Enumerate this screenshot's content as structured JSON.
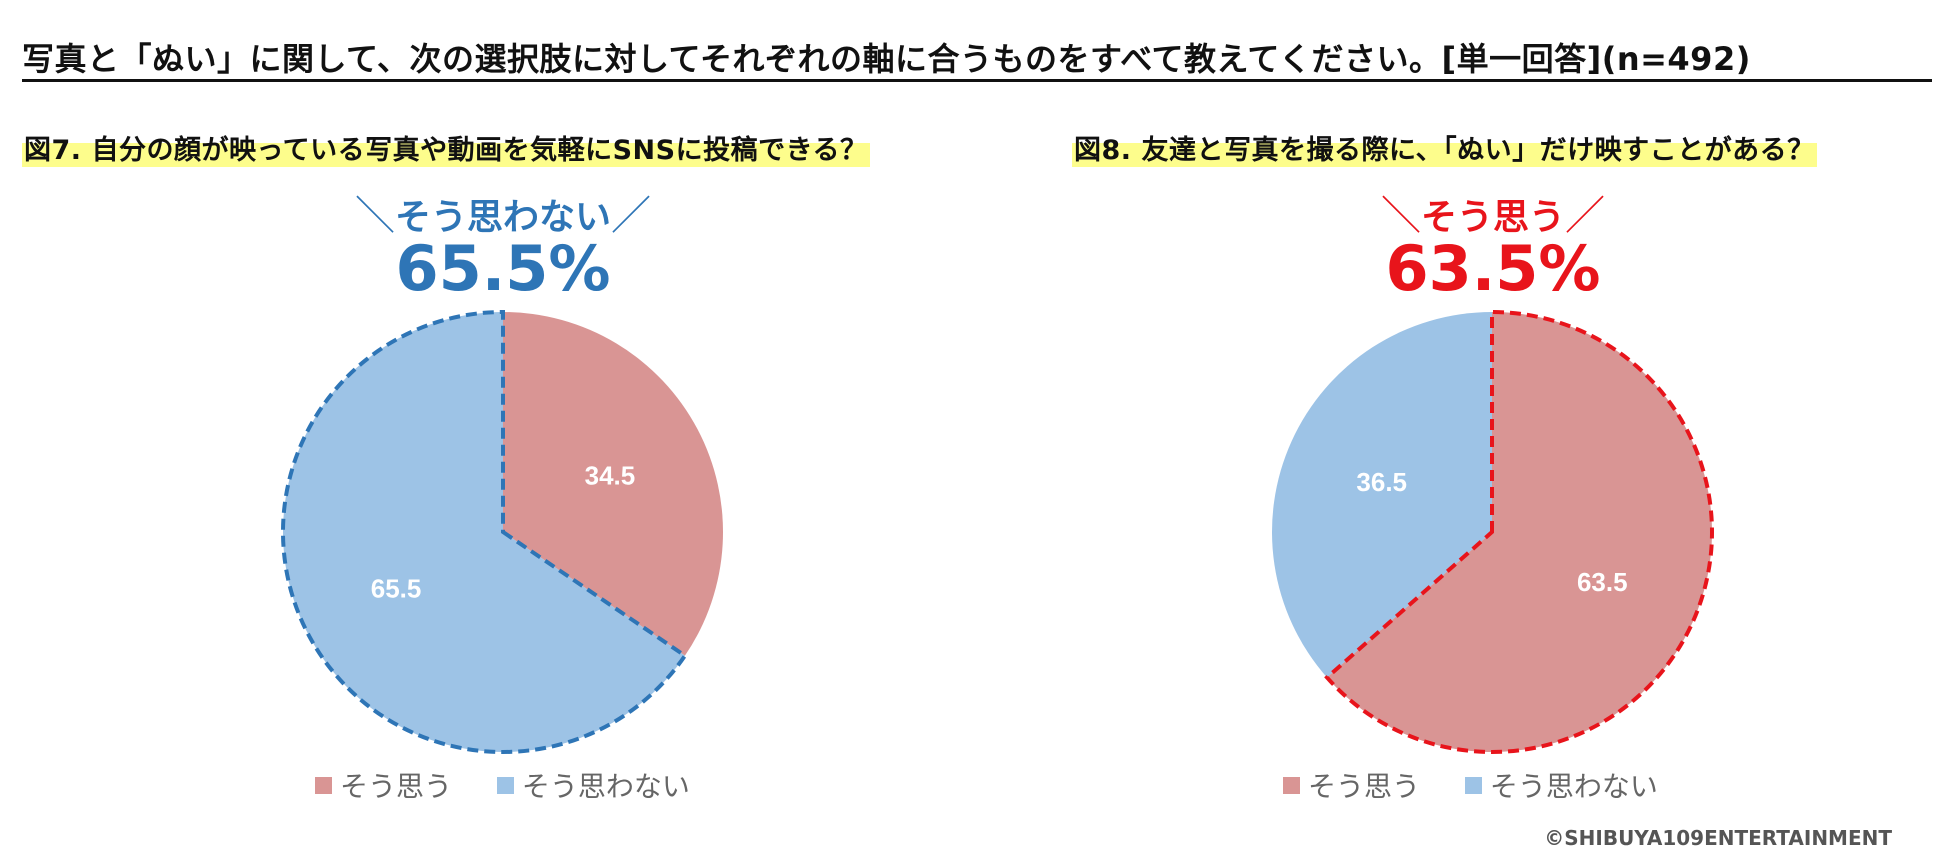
{
  "title": "写真と「ぬい」に関して、次の選択肢に対してそれぞれの軸に合うものをすべて教えてください。[単一回答](n=492)",
  "colors": {
    "agree": "#d99594",
    "disagree": "#9dc3e6",
    "blue_accent": "#2e75b6",
    "red_accent": "#e8141b",
    "title_highlight": "#fdfd8c"
  },
  "chart_data": [
    {
      "type": "pie",
      "title": "図7. 自分の顔が映っている写真や動画を気軽にSNSに投稿できる？",
      "categories": [
        "そう思う",
        "そう思わない"
      ],
      "values": [
        34.5,
        65.5
      ],
      "value_labels": [
        "34.5",
        "65.5"
      ],
      "highlight": {
        "prefix": "＼",
        "label": "そう思わない",
        "suffix": "／",
        "value": "65.5%"
      },
      "legend": [
        "そう思う",
        "そう思わない"
      ]
    },
    {
      "type": "pie",
      "title": "図8. 友達と写真を撮る際に、「ぬい」だけ映すことがある？",
      "categories": [
        "そう思う",
        "そう思わない"
      ],
      "values": [
        63.5,
        36.5
      ],
      "value_labels": [
        "63.5",
        "36.5"
      ],
      "highlight": {
        "prefix": "＼",
        "label": "そう思う",
        "suffix": "／",
        "value": "63.5%"
      },
      "legend": [
        "そう思う",
        "そう思わない"
      ]
    }
  ],
  "credit": "©SHIBUYA109ENTERTAINMENT"
}
